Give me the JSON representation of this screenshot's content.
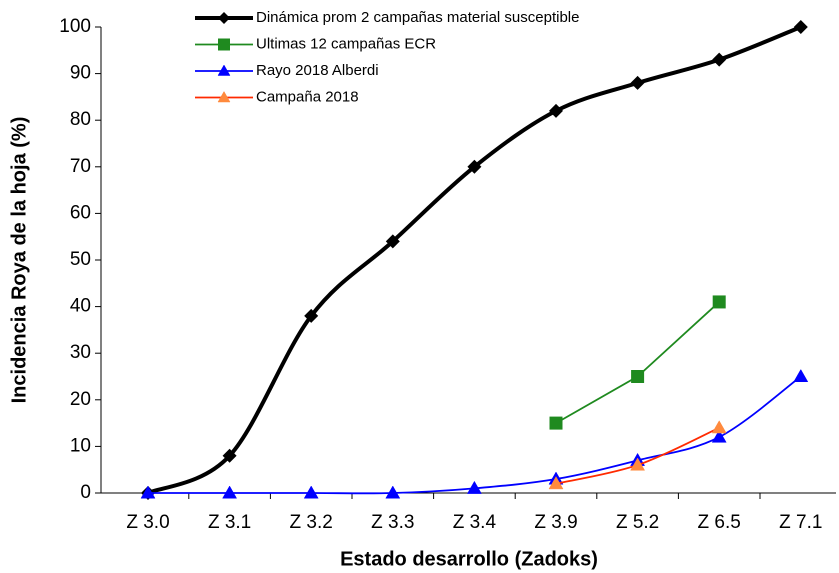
{
  "chart_data": {
    "type": "line",
    "xlabel": "Estado desarrollo (Zadoks)",
    "ylabel": "Incidencia Roya de la hoja (%)",
    "categories": [
      "Z 3.0",
      "Z 3.1",
      "Z 3.2",
      "Z 3.3",
      "Z 3.4",
      "Z 3.9",
      "Z 5.2",
      "Z 6.5",
      "Z 7.1"
    ],
    "ylim": [
      0,
      100
    ],
    "yticks": [
      0,
      10,
      20,
      30,
      40,
      50,
      60,
      70,
      80,
      90,
      100
    ],
    "grid": false,
    "legend": "top",
    "series": [
      {
        "name": "Dinámica prom 2 campañas material susceptible",
        "color": "#000000",
        "marker": "diamond",
        "smooth": true,
        "values": [
          0,
          8,
          38,
          54,
          70,
          82,
          88,
          93,
          100
        ]
      },
      {
        "name": "Ultimas 12 campañas ECR",
        "color": "#1f8a1f",
        "marker": "square",
        "smooth": false,
        "values": [
          null,
          null,
          null,
          null,
          null,
          15,
          25,
          41,
          null
        ]
      },
      {
        "name": "Rayo 2018 Alberdi",
        "color": "#0000ff",
        "marker": "triangle",
        "smooth": true,
        "values": [
          0,
          0,
          0,
          0,
          1,
          3,
          7,
          12,
          25
        ]
      },
      {
        "name": "Campaña 2018",
        "color": "#ff2a00",
        "marker": "triangle",
        "smooth": true,
        "values": [
          null,
          null,
          null,
          null,
          null,
          2,
          6,
          14,
          null
        ]
      }
    ]
  }
}
